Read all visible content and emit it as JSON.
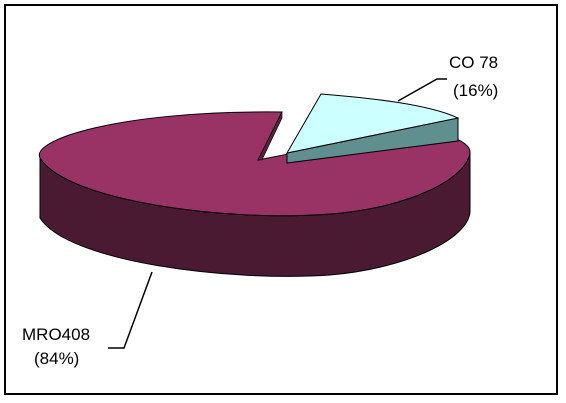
{
  "chart_data": {
    "type": "pie",
    "title": "",
    "slices": [
      {
        "name": "MRO",
        "value": 408,
        "percent": 84,
        "label_line1": "MRO408",
        "label_line2": "(84%)",
        "color": "#993366",
        "side_color": "#4a1a33"
      },
      {
        "name": "CO",
        "value": 78,
        "percent": 16,
        "label_line1": "CO 78",
        "label_line2": "(16%)",
        "color": "#ccffff",
        "side_color": "#5f8f8f"
      }
    ],
    "style": "3d-exploded",
    "legend": "none"
  }
}
